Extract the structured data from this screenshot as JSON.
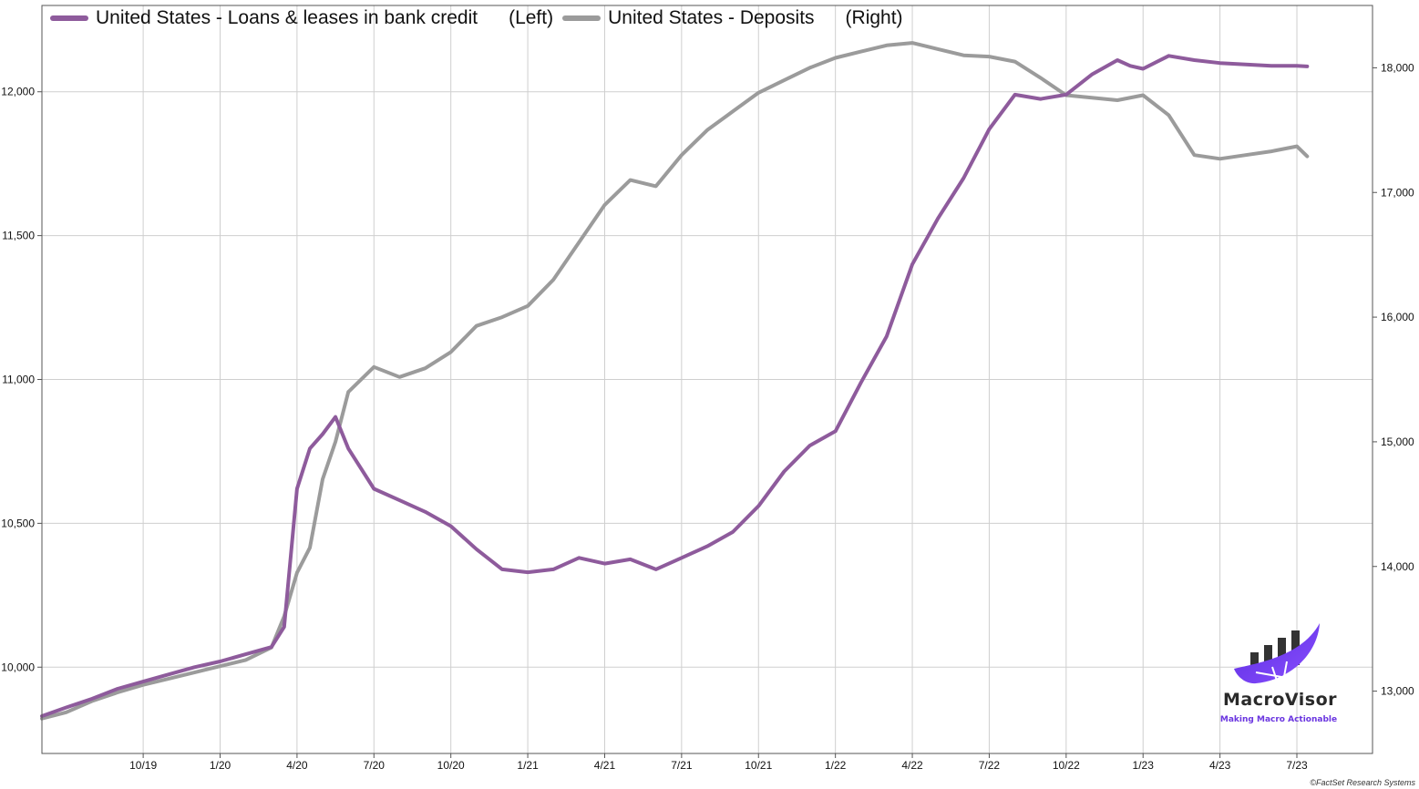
{
  "chart_data": {
    "type": "line",
    "legend": {
      "series1": {
        "name": "United States - Loans & leases in bank credit",
        "axis": "(Left)",
        "color": "#8e5b9c"
      },
      "series2": {
        "name": "United States - Deposits",
        "axis": "(Right)",
        "color": "#9b9b9b"
      }
    },
    "x_ticks": [
      {
        "label": "10/19",
        "t": 3
      },
      {
        "label": "1/20",
        "t": 6
      },
      {
        "label": "4/20",
        "t": 9
      },
      {
        "label": "7/20",
        "t": 12
      },
      {
        "label": "10/20",
        "t": 15
      },
      {
        "label": "1/21",
        "t": 18
      },
      {
        "label": "4/21",
        "t": 21
      },
      {
        "label": "7/21",
        "t": 24
      },
      {
        "label": "10/21",
        "t": 27
      },
      {
        "label": "1/22",
        "t": 30
      },
      {
        "label": "4/22",
        "t": 33
      },
      {
        "label": "7/22",
        "t": 36
      },
      {
        "label": "10/22",
        "t": 39
      },
      {
        "label": "1/23",
        "t": 42
      },
      {
        "label": "4/23",
        "t": 45
      },
      {
        "label": "7/23",
        "t": 48
      }
    ],
    "x_range": [
      -0.95,
      50.95
    ],
    "left_axis": {
      "range": [
        9700,
        12300
      ],
      "ticks": [
        {
          "v": 10000,
          "label": "10,000"
        },
        {
          "v": 10500,
          "label": "10,500"
        },
        {
          "v": 11000,
          "label": "11,000"
        },
        {
          "v": 11500,
          "label": "11,500"
        },
        {
          "v": 12000,
          "label": "12,000"
        }
      ]
    },
    "right_axis": {
      "range": [
        12500,
        18500
      ],
      "ticks": [
        {
          "v": 13000,
          "label": "13,000"
        },
        {
          "v": 14000,
          "label": "14,000"
        },
        {
          "v": 15000,
          "label": "15,000"
        },
        {
          "v": 16000,
          "label": "16,000"
        },
        {
          "v": 17000,
          "label": "17,000"
        },
        {
          "v": 18000,
          "label": "18,000"
        }
      ]
    },
    "series": [
      {
        "name": "United States - Loans & leases in bank credit",
        "axis": "left",
        "color": "#8e5b9c",
        "t": [
          -0.95,
          0,
          1,
          2,
          3,
          4,
          5,
          6,
          7,
          8,
          8.5,
          9,
          9.5,
          10,
          10.5,
          11,
          12,
          13,
          14,
          15,
          16,
          17,
          18,
          19,
          20,
          21,
          22,
          23,
          24,
          25,
          26,
          27,
          28,
          29,
          30,
          31,
          32,
          33,
          34,
          35,
          36,
          37,
          38,
          39,
          40,
          41,
          41.5,
          42,
          43,
          44,
          45,
          46,
          47,
          48,
          48.4
        ],
        "values": [
          9830,
          9860,
          9890,
          9925,
          9950,
          9975,
          10000,
          10020,
          10045,
          10070,
          10140,
          10620,
          10760,
          10810,
          10870,
          10760,
          10620,
          10580,
          10540,
          10490,
          10410,
          10340,
          10330,
          10340,
          10380,
          10360,
          10375,
          10340,
          10380,
          10420,
          10470,
          10560,
          10680,
          10770,
          10820,
          10990,
          11150,
          11400,
          11560,
          11700,
          11870,
          11990,
          11975,
          11990,
          12060,
          12110,
          12090,
          12080,
          12125,
          12110,
          12100,
          12095,
          12090,
          12090,
          12088
        ]
      },
      {
        "name": "United States - Deposits",
        "axis": "right",
        "color": "#9b9b9b",
        "t": [
          -0.95,
          0,
          1,
          2,
          3,
          4,
          5,
          6,
          7,
          8,
          8.5,
          9,
          9.5,
          10,
          10.5,
          11,
          12,
          13,
          14,
          15,
          16,
          17,
          18,
          19,
          20,
          21,
          22,
          23,
          24,
          25,
          26,
          27,
          28,
          29,
          30,
          31,
          32,
          33,
          34,
          35,
          36,
          37,
          38,
          39,
          40,
          41,
          42,
          43,
          44,
          45,
          46,
          47,
          48,
          48.4
        ],
        "values": [
          12780,
          12830,
          12920,
          12990,
          13050,
          13100,
          13150,
          13200,
          13250,
          13350,
          13600,
          13950,
          14150,
          14700,
          15000,
          15400,
          15600,
          15520,
          15590,
          15720,
          15930,
          16000,
          16090,
          16300,
          16600,
          16900,
          17100,
          17050,
          17300,
          17500,
          17650,
          17800,
          17900,
          18000,
          18080,
          18130,
          18180,
          18200,
          18150,
          18100,
          18090,
          18050,
          17920,
          17780,
          17760,
          17740,
          17780,
          17620,
          17300,
          17270,
          17300,
          17330,
          17370,
          17290
        ]
      }
    ]
  },
  "watermark": {
    "name": "MacroVisor",
    "tagline": "Making Macro Actionable"
  },
  "footer": {
    "copyright": "©FactSet Research Systems"
  }
}
